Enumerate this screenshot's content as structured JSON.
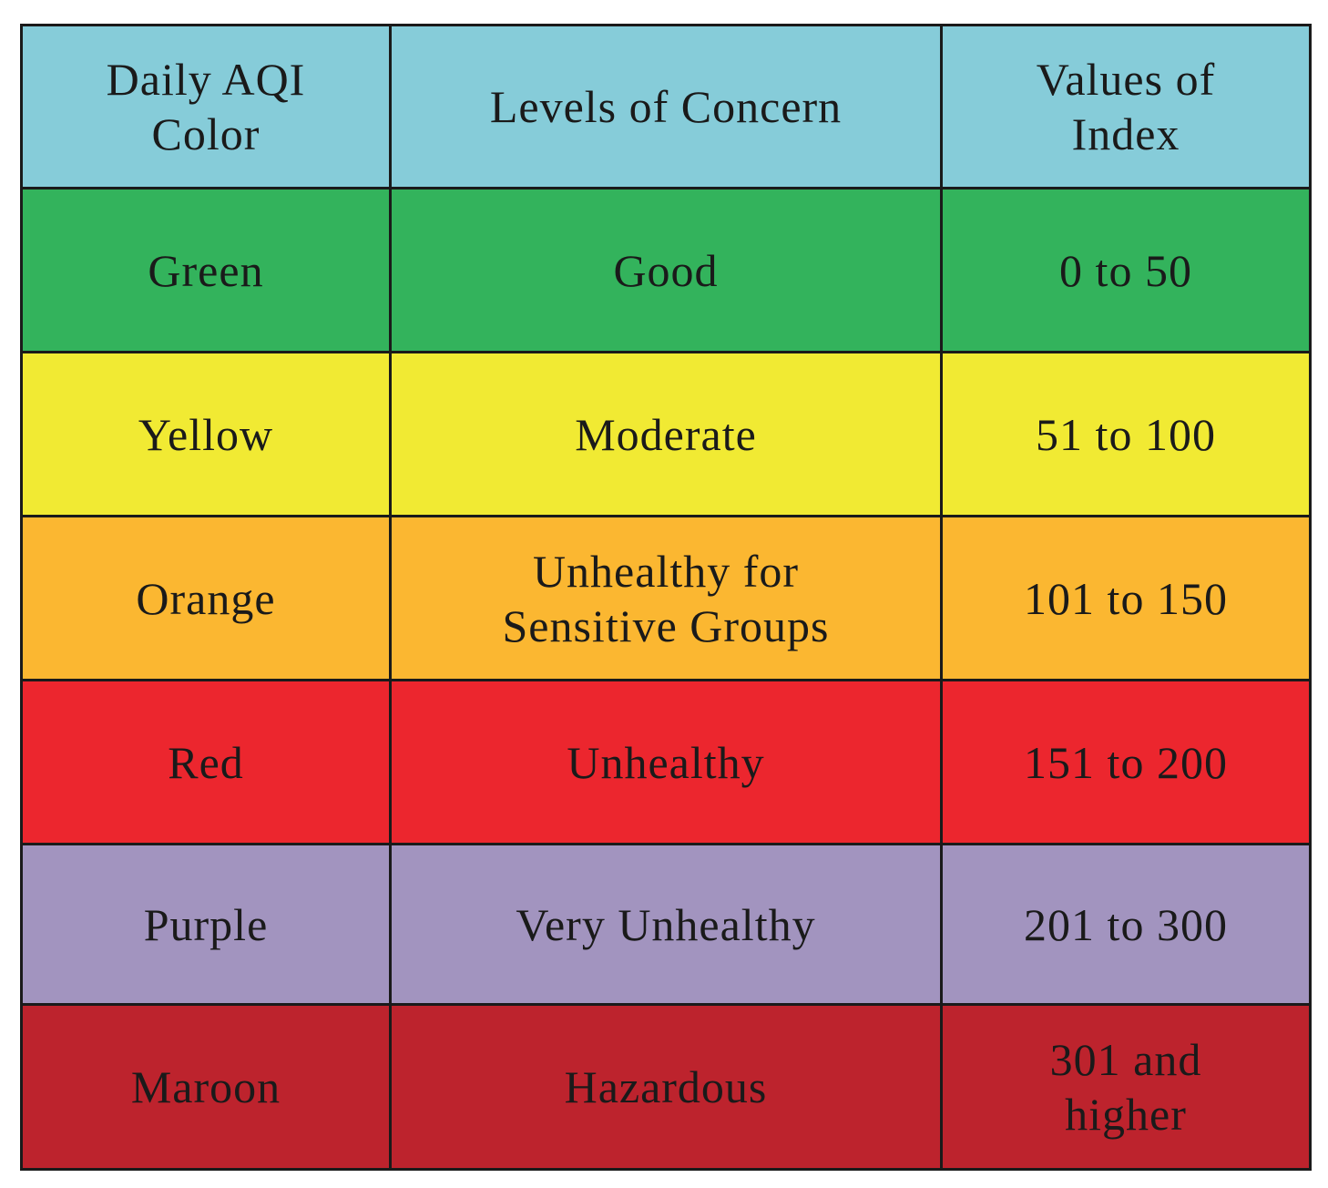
{
  "table": {
    "header": {
      "col1": "Daily AQI Color",
      "col2": "Levels of Concern",
      "col3": "Values of Index",
      "bg": "#86CCD9"
    },
    "rows": [
      {
        "color": "Green",
        "concern": "Good",
        "values": "0 to 50",
        "bg": "#33B35C"
      },
      {
        "color": "Yellow",
        "concern": "Moderate",
        "values": "51 to 100",
        "bg": "#F1EA33"
      },
      {
        "color": "Orange",
        "concern": "Unhealthy for Sensitive Groups",
        "values": "101 to 150",
        "bg": "#FBB731"
      },
      {
        "color": "Red",
        "concern": "Unhealthy",
        "values": "151 to 200",
        "bg": "#EC262E"
      },
      {
        "color": "Purple",
        "concern": "Very Unhealthy",
        "values": "201 to 300",
        "bg": "#A294BF"
      },
      {
        "color": "Maroon",
        "concern": "Hazardous",
        "values": "301 and higher",
        "bg": "#BD232D"
      }
    ]
  }
}
